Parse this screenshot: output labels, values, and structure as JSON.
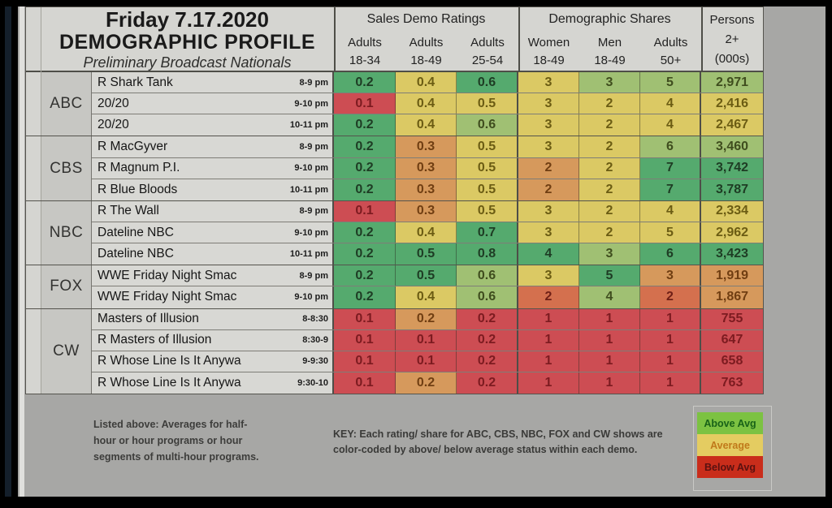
{
  "header": {
    "date": "Friday 7.17.2020",
    "title": "DEMOGRAPHIC PROFILE",
    "subtitle": "Preliminary Broadcast Nationals",
    "group1": "Sales Demo Ratings",
    "group2": "Demographic Shares",
    "persons": "Persons",
    "persons_sub": [
      "2+",
      "(000s)"
    ],
    "subcols": [
      [
        "Adults",
        "18-34"
      ],
      [
        "Adults",
        "18-49"
      ],
      [
        "Adults",
        "25-54"
      ],
      [
        "Women",
        "18-49"
      ],
      [
        "Men",
        "18-49"
      ],
      [
        "Adults",
        "50+"
      ]
    ]
  },
  "palette": {
    "green": "#55aa6e",
    "lightgreen": "#a0c073",
    "yellow": "#dbc964",
    "orange": "#d6995c",
    "redorange": "#d4704e",
    "red": "#cd4d53"
  },
  "text_colors": {
    "green": "#1e3c24",
    "lightgreen": "#3f4d1e",
    "yellow": "#6b5c13",
    "orange": "#703e12",
    "redorange": "#6e1f16",
    "red": "#7c1b20"
  },
  "table": {
    "groups": [
      {
        "network": "ABC",
        "rows": [
          {
            "program": "R Shark Tank",
            "time": "8-9 pm",
            "values": [
              "0.2",
              "0.4",
              "0.6",
              "3",
              "3",
              "5",
              "2,971"
            ],
            "colors": [
              "green",
              "yellow",
              "green",
              "yellow",
              "lightgreen",
              "lightgreen",
              "lightgreen"
            ]
          },
          {
            "program": "20/20",
            "time": "9-10 pm",
            "values": [
              "0.1",
              "0.4",
              "0.5",
              "3",
              "2",
              "4",
              "2,416"
            ],
            "colors": [
              "red",
              "yellow",
              "yellow",
              "yellow",
              "yellow",
              "yellow",
              "yellow"
            ]
          },
          {
            "program": "20/20",
            "time": "10-11 pm",
            "values": [
              "0.2",
              "0.4",
              "0.6",
              "3",
              "2",
              "4",
              "2,467"
            ],
            "colors": [
              "green",
              "yellow",
              "lightgreen",
              "yellow",
              "yellow",
              "yellow",
              "yellow"
            ]
          }
        ]
      },
      {
        "network": "CBS",
        "rows": [
          {
            "program": "R MacGyver",
            "time": "8-9 pm",
            "values": [
              "0.2",
              "0.3",
              "0.5",
              "3",
              "2",
              "6",
              "3,460"
            ],
            "colors": [
              "green",
              "orange",
              "yellow",
              "yellow",
              "yellow",
              "lightgreen",
              "lightgreen"
            ]
          },
          {
            "program": "R Magnum P.I.",
            "time": "9-10 pm",
            "values": [
              "0.2",
              "0.3",
              "0.5",
              "2",
              "2",
              "7",
              "3,742"
            ],
            "colors": [
              "green",
              "orange",
              "yellow",
              "orange",
              "yellow",
              "green",
              "green"
            ]
          },
          {
            "program": "R Blue Bloods",
            "time": "10-11 pm",
            "values": [
              "0.2",
              "0.3",
              "0.5",
              "2",
              "2",
              "7",
              "3,787"
            ],
            "colors": [
              "green",
              "orange",
              "yellow",
              "orange",
              "yellow",
              "green",
              "green"
            ]
          }
        ]
      },
      {
        "network": "NBC",
        "rows": [
          {
            "program": "R The Wall",
            "time": "8-9 pm",
            "values": [
              "0.1",
              "0.3",
              "0.5",
              "3",
              "2",
              "4",
              "2,334"
            ],
            "colors": [
              "red",
              "orange",
              "yellow",
              "yellow",
              "yellow",
              "yellow",
              "yellow"
            ]
          },
          {
            "program": "Dateline NBC",
            "time": "9-10 pm",
            "values": [
              "0.2",
              "0.4",
              "0.7",
              "3",
              "2",
              "5",
              "2,962"
            ],
            "colors": [
              "green",
              "yellow",
              "green",
              "yellow",
              "yellow",
              "yellow",
              "yellow"
            ]
          },
          {
            "program": "Dateline NBC",
            "time": "10-11 pm",
            "values": [
              "0.2",
              "0.5",
              "0.8",
              "4",
              "3",
              "6",
              "3,423"
            ],
            "colors": [
              "green",
              "green",
              "green",
              "green",
              "lightgreen",
              "green",
              "green"
            ]
          }
        ]
      },
      {
        "network": "FOX",
        "rows": [
          {
            "program": "WWE Friday Night Smac",
            "time": "8-9 pm",
            "values": [
              "0.2",
              "0.5",
              "0.6",
              "3",
              "5",
              "3",
              "1,919"
            ],
            "colors": [
              "green",
              "green",
              "lightgreen",
              "yellow",
              "green",
              "orange",
              "orange"
            ]
          },
          {
            "program": "WWE Friday Night Smac",
            "time": "9-10 pm",
            "values": [
              "0.2",
              "0.4",
              "0.6",
              "2",
              "4",
              "2",
              "1,867"
            ],
            "colors": [
              "green",
              "yellow",
              "lightgreen",
              "redorange",
              "lightgreen",
              "redorange",
              "orange"
            ]
          }
        ]
      },
      {
        "network": "CW",
        "rows": [
          {
            "program": "Masters of Illusion",
            "time": "8-8:30",
            "values": [
              "0.1",
              "0.2",
              "0.2",
              "1",
              "1",
              "1",
              "755"
            ],
            "colors": [
              "red",
              "orange",
              "red",
              "red",
              "red",
              "red",
              "red"
            ]
          },
          {
            "program": "R Masters of Illusion",
            "time": "8:30-9",
            "values": [
              "0.1",
              "0.1",
              "0.2",
              "1",
              "1",
              "1",
              "647"
            ],
            "colors": [
              "red",
              "red",
              "red",
              "red",
              "red",
              "red",
              "red"
            ]
          },
          {
            "program": "R Whose Line Is It Anywa",
            "time": "9-9:30",
            "values": [
              "0.1",
              "0.1",
              "0.2",
              "1",
              "1",
              "1",
              "658"
            ],
            "colors": [
              "red",
              "red",
              "red",
              "red",
              "red",
              "red",
              "red"
            ]
          },
          {
            "program": "R Whose Line Is It Anywa",
            "time": "9:30-10",
            "values": [
              "0.1",
              "0.2",
              "0.2",
              "1",
              "1",
              "1",
              "763"
            ],
            "colors": [
              "red",
              "orange",
              "red",
              "red",
              "red",
              "red",
              "red"
            ]
          }
        ]
      }
    ]
  },
  "footer": {
    "note_lines": [
      "Listed above: Averages for half-",
      "hour or hour programs or hour",
      "segments of multi-hour programs."
    ],
    "key_lines": [
      "KEY: Each rating/ share for ABC, CBS, NBC, FOX and CW shows are",
      "color-coded by above/ below average status within each demo."
    ],
    "legend": [
      {
        "label": "Above Avg",
        "bg": "#7cc242",
        "fg": "#186218"
      },
      {
        "label": "Average",
        "bg": "#e4cc61",
        "fg": "#c0791a"
      },
      {
        "label": "Below Avg",
        "bg": "#c92d1b",
        "fg": "#591110"
      }
    ]
  }
}
